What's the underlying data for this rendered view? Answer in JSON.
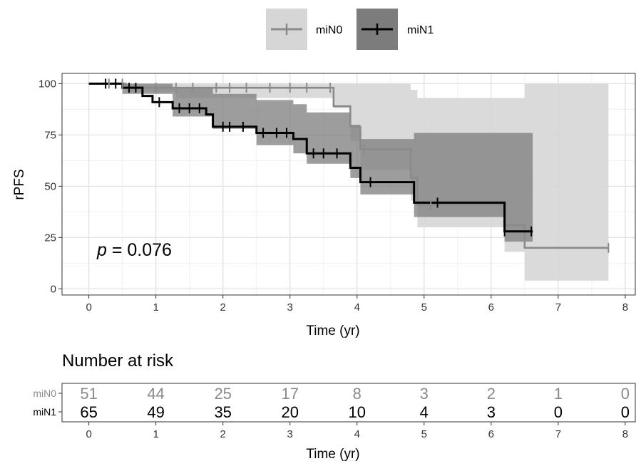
{
  "colors": {
    "miN0": "#8a8a8a",
    "miN1": "#000000",
    "band0": "#d6d6d6",
    "band1": "#7c7c7c",
    "grid_major": "#e2e2e2",
    "grid_minor": "#f0f0f0"
  },
  "legend": {
    "items": [
      {
        "label": "miN0",
        "series": "miN0"
      },
      {
        "label": "miN1",
        "series": "miN1"
      }
    ]
  },
  "annotation": {
    "p_symbol": "p",
    "p_rest": " = 0.076"
  },
  "chart_data": {
    "type": "line",
    "subtype": "kaplan-meier",
    "xlabel": "Time (yr)",
    "ylabel": "rPFS",
    "xlim": [
      -0.4,
      8.15
    ],
    "ylim": [
      -3,
      105
    ],
    "xticks": [
      0,
      1,
      2,
      3,
      4,
      5,
      6,
      7,
      8
    ],
    "yticks": [
      0,
      25,
      50,
      75,
      100
    ],
    "grid": true,
    "legend_position": "top",
    "series": [
      {
        "name": "miN0",
        "steps": [
          [
            0,
            100
          ],
          [
            0.55,
            100
          ],
          [
            0.55,
            98
          ],
          [
            3.65,
            98
          ],
          [
            3.65,
            89
          ],
          [
            3.9,
            89
          ],
          [
            3.9,
            79
          ],
          [
            4.05,
            79
          ],
          [
            4.05,
            68
          ],
          [
            4.8,
            68
          ],
          [
            4.8,
            54
          ],
          [
            4.9,
            54
          ],
          [
            4.9,
            41
          ],
          [
            6.2,
            41
          ],
          [
            6.2,
            31
          ],
          [
            6.5,
            31
          ],
          [
            6.5,
            20
          ],
          [
            7.75,
            20
          ]
        ],
        "censored": [
          [
            0.3,
            100
          ],
          [
            0.5,
            100
          ],
          [
            1.0,
            98
          ],
          [
            1.3,
            98
          ],
          [
            1.55,
            98
          ],
          [
            1.9,
            98
          ],
          [
            2.1,
            98
          ],
          [
            2.35,
            98
          ],
          [
            2.7,
            98
          ],
          [
            3.0,
            98
          ],
          [
            3.25,
            98
          ],
          [
            3.6,
            98
          ],
          [
            4.1,
            68
          ],
          [
            5.1,
            41
          ],
          [
            7.75,
            20
          ]
        ],
        "band": {
          "x": [
            0,
            0.55,
            1.3,
            1.9,
            3.65,
            3.9,
            4.05,
            4.8,
            4.9,
            6.2,
            6.5,
            7.75
          ],
          "upper": [
            100,
            100,
            100,
            100,
            100,
            100,
            100,
            97,
            93,
            93,
            100,
            100
          ],
          "lower": [
            100,
            96,
            93,
            93,
            88,
            72,
            58,
            43,
            30,
            18,
            4,
            4
          ]
        }
      },
      {
        "name": "miN1",
        "steps": [
          [
            0,
            100
          ],
          [
            0.5,
            100
          ],
          [
            0.5,
            98
          ],
          [
            0.8,
            98
          ],
          [
            0.8,
            94
          ],
          [
            0.95,
            94
          ],
          [
            0.95,
            91
          ],
          [
            1.25,
            91
          ],
          [
            1.25,
            88
          ],
          [
            1.75,
            88
          ],
          [
            1.75,
            85
          ],
          [
            1.85,
            85
          ],
          [
            1.85,
            79
          ],
          [
            2.5,
            79
          ],
          [
            2.5,
            76
          ],
          [
            3.05,
            76
          ],
          [
            3.05,
            73
          ],
          [
            3.25,
            73
          ],
          [
            3.25,
            66
          ],
          [
            3.9,
            66
          ],
          [
            3.9,
            59
          ],
          [
            4.05,
            59
          ],
          [
            4.05,
            52
          ],
          [
            4.85,
            52
          ],
          [
            4.85,
            42
          ],
          [
            6.2,
            42
          ],
          [
            6.2,
            28
          ],
          [
            6.62,
            28
          ]
        ],
        "censored": [
          [
            0.25,
            100
          ],
          [
            0.4,
            100
          ],
          [
            0.6,
            98
          ],
          [
            0.7,
            98
          ],
          [
            1.05,
            91
          ],
          [
            1.35,
            88
          ],
          [
            1.5,
            88
          ],
          [
            1.65,
            88
          ],
          [
            2.0,
            79
          ],
          [
            2.1,
            79
          ],
          [
            2.3,
            79
          ],
          [
            2.6,
            76
          ],
          [
            2.8,
            76
          ],
          [
            2.95,
            76
          ],
          [
            3.35,
            66
          ],
          [
            3.5,
            66
          ],
          [
            3.7,
            66
          ],
          [
            4.2,
            52
          ],
          [
            5.2,
            42
          ],
          [
            6.2,
            28
          ],
          [
            6.6,
            28
          ]
        ],
        "band": {
          "x": [
            0,
            0.5,
            1.25,
            1.85,
            2.5,
            3.05,
            3.25,
            3.9,
            4.05,
            4.85,
            6.2,
            6.62
          ],
          "upper": [
            100,
            100,
            98,
            95,
            92,
            90,
            86,
            80,
            73,
            76,
            76,
            76
          ],
          "lower": [
            100,
            95,
            84,
            78,
            70,
            66,
            61,
            54,
            46,
            35,
            23,
            10
          ]
        }
      }
    ],
    "risk_table": {
      "title": "Number at risk",
      "xlabel": "Time (yr)",
      "times": [
        0,
        1,
        2,
        3,
        4,
        5,
        6,
        7,
        8
      ],
      "rows": [
        {
          "group": "miN0",
          "counts": [
            51,
            44,
            25,
            17,
            8,
            3,
            2,
            1,
            0
          ]
        },
        {
          "group": "miN1",
          "counts": [
            65,
            49,
            35,
            20,
            10,
            4,
            3,
            0,
            0
          ]
        }
      ]
    }
  }
}
